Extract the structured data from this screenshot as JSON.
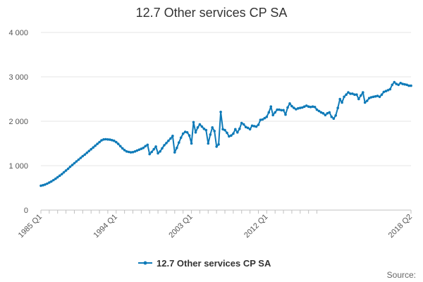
{
  "chart_data": {
    "type": "line",
    "title": "12.7 Other services CP SA",
    "xlabel": "",
    "ylabel": "",
    "x_tick_labels": [
      "1985 Q1",
      "1994 Q1",
      "2003 Q1",
      "2012 Q1",
      "2018 Q2"
    ],
    "y_tick_labels": [
      "0",
      "1 000",
      "2 000",
      "3 000",
      "4 000"
    ],
    "y_ticks": [
      0,
      1000,
      2000,
      3000,
      4000
    ],
    "ylim": [
      0,
      4000
    ],
    "x_start": "1985 Q1",
    "x_end": "2018 Q2",
    "grid": "horizontal",
    "legend_position": "bottom",
    "source_label": "Source:",
    "colors": {
      "series": "#0e7ab8",
      "grid": "#e6e6e6",
      "axis": "#c0c0c0"
    },
    "series": [
      {
        "name": "12.7 Other services CP SA",
        "values": [
          550,
          560,
          575,
          595,
          620,
          645,
          675,
          705,
          740,
          775,
          810,
          850,
          890,
          930,
          975,
          1015,
          1055,
          1095,
          1135,
          1175,
          1215,
          1250,
          1290,
          1330,
          1370,
          1410,
          1450,
          1490,
          1530,
          1570,
          1590,
          1595,
          1590,
          1585,
          1575,
          1560,
          1530,
          1490,
          1440,
          1390,
          1350,
          1320,
          1310,
          1300,
          1305,
          1320,
          1340,
          1360,
          1380,
          1400,
          1440,
          1470,
          1260,
          1310,
          1370,
          1430,
          1280,
          1320,
          1390,
          1460,
          1510,
          1560,
          1610,
          1670,
          1300,
          1400,
          1520,
          1630,
          1720,
          1760,
          1750,
          1680,
          1500,
          1980,
          1750,
          1860,
          1930,
          1880,
          1830,
          1800,
          1500,
          1700,
          1860,
          1780,
          1430,
          1480,
          2210,
          1820,
          1800,
          1740,
          1660,
          1680,
          1720,
          1820,
          1750,
          1830,
          1960,
          1930,
          1870,
          1850,
          1820,
          1900,
          1890,
          1880,
          1920,
          2030,
          2040,
          2070,
          2100,
          2200,
          2330,
          2140,
          2200,
          2260,
          2260,
          2250,
          2250,
          2150,
          2310,
          2400,
          2340,
          2300,
          2270,
          2290,
          2300,
          2310,
          2330,
          2350,
          2330,
          2320,
          2330,
          2320,
          2260,
          2230,
          2200,
          2180,
          2140,
          2180,
          2200,
          2100,
          2060,
          2130,
          2300,
          2500,
          2420,
          2550,
          2600,
          2650,
          2620,
          2620,
          2600,
          2600,
          2500,
          2580,
          2650,
          2420,
          2460,
          2520,
          2540,
          2550,
          2560,
          2570,
          2550,
          2600,
          2660,
          2680,
          2700,
          2720,
          2820,
          2880,
          2840,
          2820,
          2860,
          2840,
          2830,
          2820,
          2800,
          2800
        ]
      }
    ]
  }
}
